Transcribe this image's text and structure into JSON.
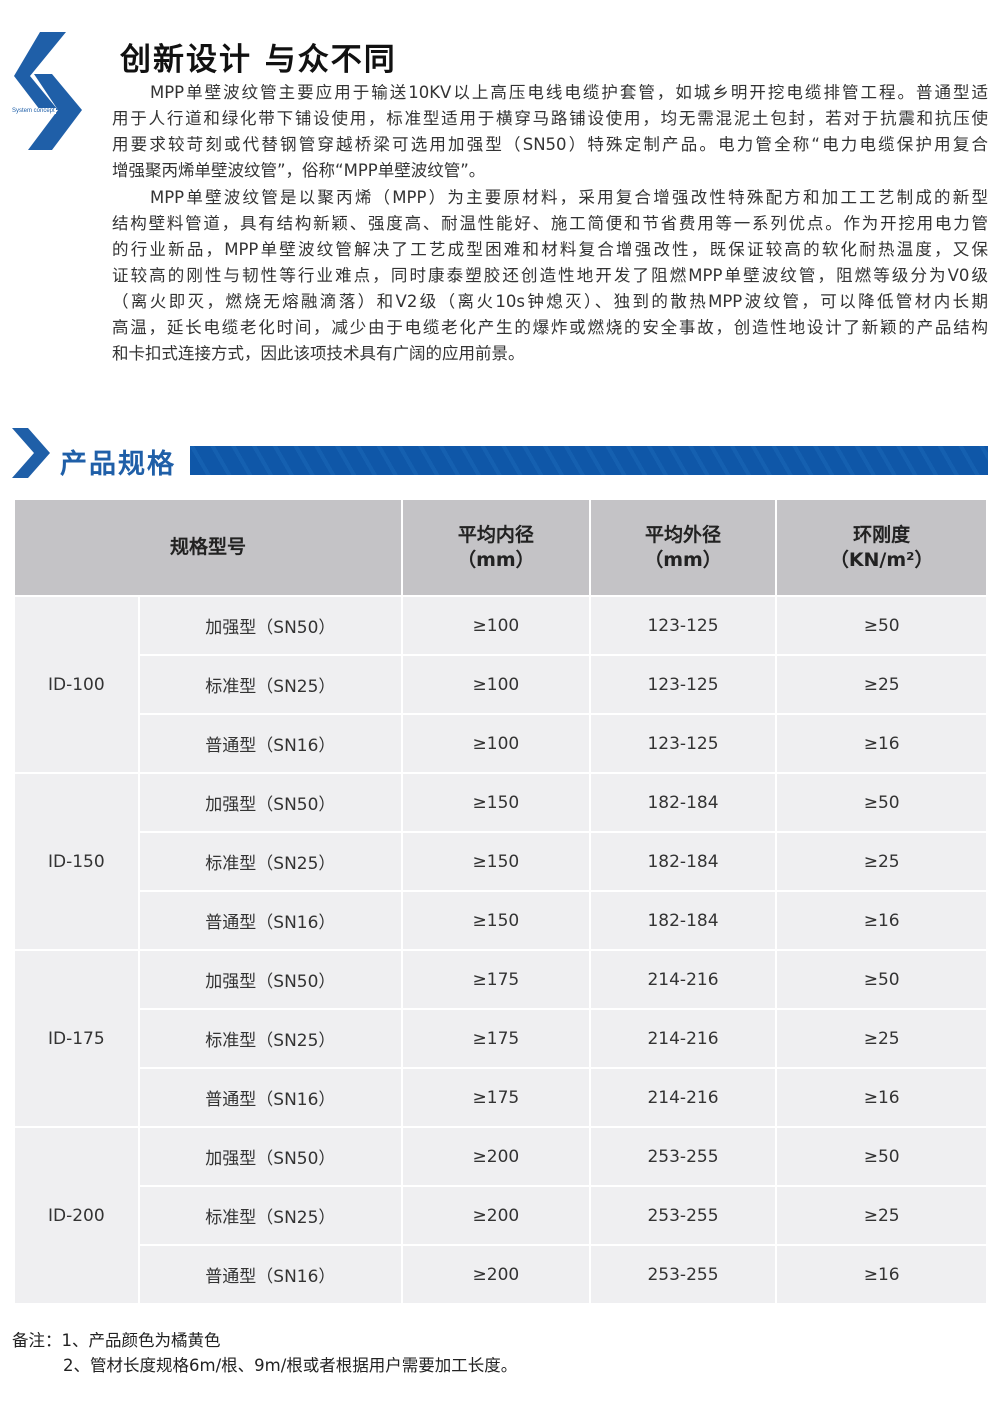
{
  "logo": {
    "text": "System concept",
    "color": "#1f5fa8"
  },
  "title": "创新设计  与众不同",
  "paragraphs": [
    [
      "MPP单壁波纹管主要应用于输送10KV以上高压电线电缆护套管，如城乡明开挖电缆排管工程。普通型适",
      "用于人行道和绿化带下铺设使用，标准型适用于横穿马路铺设使用，均无需混泥土包封，若对于抗震和抗压使",
      "用要求较苛刻或代替钢管穿越桥梁可选用加强型（SN50）特殊定制产品。电力管全称“电力电缆保护用复合",
      "增强聚丙烯单壁波纹管”，俗称“MPP单壁波纹管”。"
    ],
    [
      "MPP单壁波纹管是以聚丙烯（MPP）为主要原材料，采用复合增强改性特殊配方和加工工艺制成的新型",
      "结构壁料管道，具有结构新颖、强度高、耐温性能好、施工简便和节省费用等一系列优点。作为开挖用电力管",
      "的行业新品，MPP单壁波纹管解决了工艺成型困难和材料复合增强改性，既保证较高的软化耐热温度，又保",
      "证较高的刚性与韧性等行业难点，同时康泰塑胶还创造性地开发了阻燃MPP单壁波纹管，阻燃等级分为V0级",
      "（离火即灭，燃烧无熔融滴落）和V2级（离火10s钟熄灭）、独到的散热MPP波纹管，可以降低管材内长期",
      "高温，延长电缆老化时间，减少由于电缆老化产生的爆炸或燃烧的安全事故，创造性地设计了新颖的产品结构",
      "和卡扣式连接方式，因此该项技术具有广阔的应用前景。"
    ]
  ],
  "section": {
    "title": "产品规格",
    "color": "#1f5fa8"
  },
  "table": {
    "headers": [
      "规格型号",
      "平均内径",
      "（mm）",
      "平均外径",
      "（mm）",
      "环刚度",
      "（KN/m²）"
    ],
    "groups": [
      {
        "id": "ID-100",
        "rows": [
          [
            "加强型（SN50）",
            "≥100",
            "123-125",
            "≥50"
          ],
          [
            "标准型（SN25）",
            "≥100",
            "123-125",
            "≥25"
          ],
          [
            "普通型（SN16）",
            "≥100",
            "123-125",
            "≥16"
          ]
        ]
      },
      {
        "id": "ID-150",
        "rows": [
          [
            "加强型（SN50）",
            "≥150",
            "182-184",
            "≥50"
          ],
          [
            "标准型（SN25）",
            "≥150",
            "182-184",
            "≥25"
          ],
          [
            "普通型（SN16）",
            "≥150",
            "182-184",
            "≥16"
          ]
        ]
      },
      {
        "id": "ID-175",
        "rows": [
          [
            "加强型（SN50）",
            "≥175",
            "214-216",
            "≥50"
          ],
          [
            "标准型（SN25）",
            "≥175",
            "214-216",
            "≥25"
          ],
          [
            "普通型（SN16）",
            "≥175",
            "214-216",
            "≥16"
          ]
        ]
      },
      {
        "id": "ID-200",
        "rows": [
          [
            "加强型（SN50）",
            "≥200",
            "253-255",
            "≥50"
          ],
          [
            "标准型（SN25）",
            "≥200",
            "253-255",
            "≥25"
          ],
          [
            "普通型（SN16）",
            "≥200",
            "253-255",
            "≥16"
          ]
        ]
      }
    ]
  },
  "notes": [
    "备注：1、产品颜色为橘黄色",
    "2、管材长度规格6m/根、9m/根或者根据用户需要加工长度。"
  ]
}
